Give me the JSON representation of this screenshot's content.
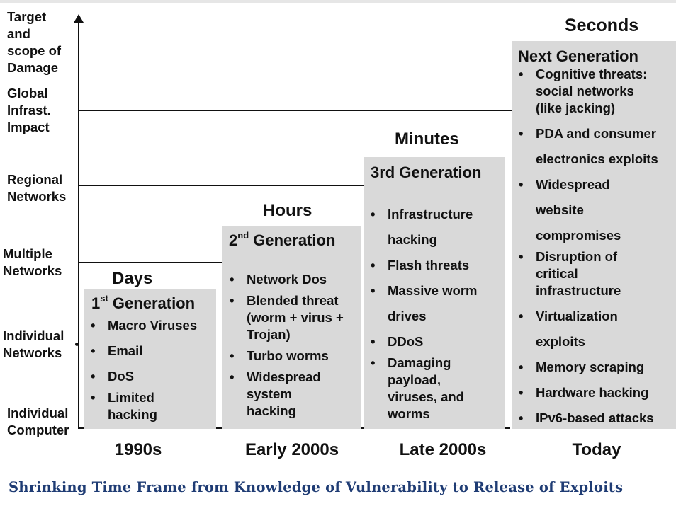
{
  "y_axis": {
    "title": [
      "Target",
      "and",
      "scope of",
      "Damage"
    ],
    "levels": [
      [
        "Global",
        "Infrast.",
        "Impact"
      ],
      [
        "Regional",
        "Networks"
      ],
      [
        "Multiple",
        "Networks"
      ],
      [
        "Individual",
        "Networks"
      ],
      [
        "Individual",
        "Computer"
      ]
    ]
  },
  "columns": [
    {
      "era": "1990s",
      "time": "Days",
      "gen_num": "1",
      "gen_sup": "st",
      "gen_rest": " Generation",
      "items": [
        "Macro Viruses",
        "Email",
        "DoS",
        "Limited hacking"
      ]
    },
    {
      "era": "Early 2000s",
      "time": "Hours",
      "gen_num": "2",
      "gen_sup": "nd",
      "gen_rest": " Generation",
      "items": [
        "Network Dos",
        "Blended threat (worm + virus + Trojan)",
        "Turbo worms",
        "Widespread system hacking"
      ]
    },
    {
      "era": "Late 2000s",
      "time": "Minutes",
      "gen_label": "3rd Generation",
      "items": [
        "Infrastructure hacking",
        "Flash threats",
        "Massive worm drives",
        "DDoS",
        "Damaging payload, viruses, and worms"
      ]
    },
    {
      "era": "Today",
      "time": "Seconds",
      "gen_label": "Next Generation",
      "items": [
        "Cognitive threats: social networks (like jacking)",
        "PDA and consumer electronics exploits",
        "Widespread website compromises",
        "Disruption of critical infrastructure",
        "Virtualization exploits",
        "Memory scraping",
        "Hardware hacking",
        "IPv6-based attacks"
      ]
    }
  ],
  "caption": "Shrinking Time Frame from Knowledge of Vulnerability to Release of Exploits",
  "colors": {
    "box": "#d9d9d9",
    "caption": "#1f3c74",
    "axis": "#111111"
  }
}
